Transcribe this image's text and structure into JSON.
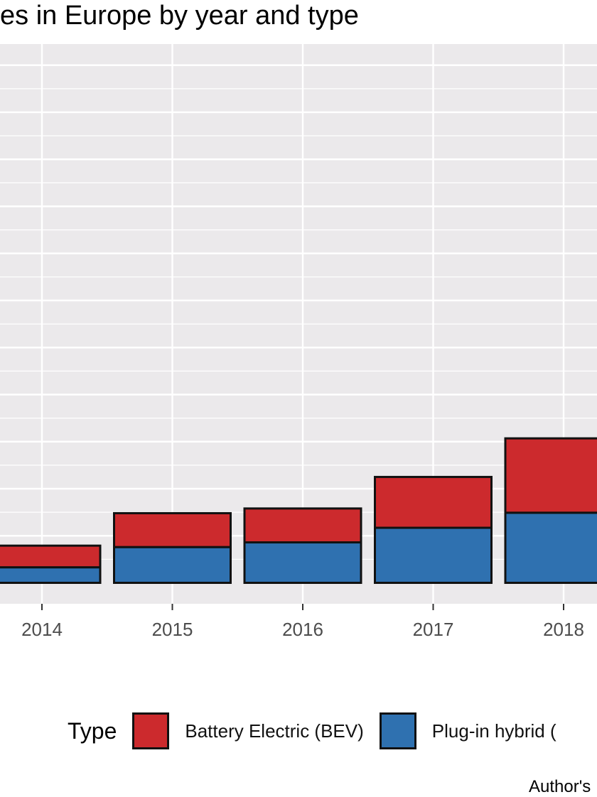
{
  "chart_data": {
    "type": "bar",
    "stacked": true,
    "title": "es in Europe by year and type",
    "categories": [
      "2014",
      "2015",
      "2016",
      "2017",
      "2018"
    ],
    "series": [
      {
        "name": "Plug-in hybrid (",
        "color": "#2f71b0",
        "values": [
          33,
          76,
          86,
          117,
          149
        ]
      },
      {
        "name": "Battery Electric (BEV)",
        "color": "#cc2a2d",
        "values": [
          46,
          72,
          72,
          108,
          158
        ]
      }
    ],
    "ylim": [
      0,
      1150
    ],
    "y_gridlines": [
      100,
      200,
      300,
      400,
      500,
      600,
      700,
      800,
      900,
      1000,
      1100
    ],
    "grid": true,
    "panel_background": "#ebe9eb",
    "legend_position": "bottom",
    "legend_title": "Type",
    "caption": "Author's"
  }
}
